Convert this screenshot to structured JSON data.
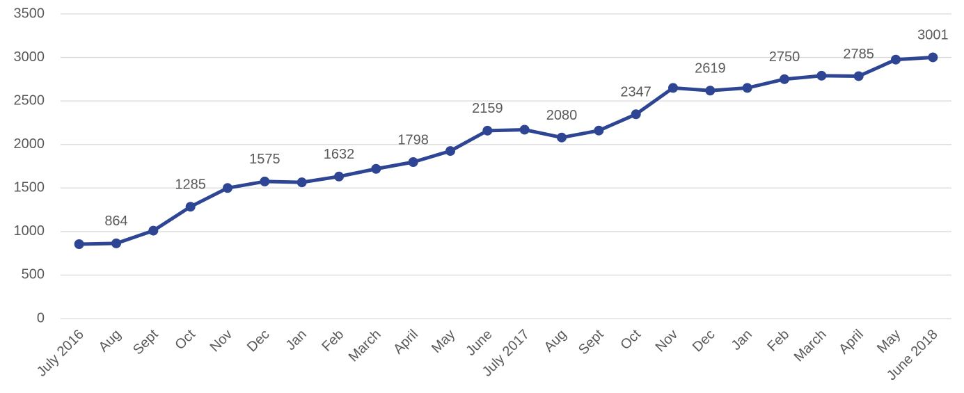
{
  "chart_data": {
    "type": "line",
    "categories": [
      "July 2016",
      "Aug",
      "Sept",
      "Oct",
      "Nov",
      "Dec",
      "Jan",
      "Feb",
      "March",
      "April",
      "May",
      "June",
      "July 2017",
      "Aug",
      "Sept",
      "Oct",
      "Nov",
      "Dec",
      "Jan",
      "Feb",
      "March",
      "April",
      "May",
      "June 2018"
    ],
    "series": [
      {
        "color": "#2e4593",
        "values": [
          855,
          864,
          1010,
          1285,
          1500,
          1575,
          1565,
          1632,
          1720,
          1798,
          1925,
          2159,
          2170,
          2080,
          2160,
          2347,
          2650,
          2619,
          2650,
          2750,
          2790,
          2785,
          2975,
          3001
        ],
        "value_labels": [
          null,
          "864",
          null,
          "1285",
          null,
          "1575",
          null,
          "1632",
          null,
          "1798",
          null,
          "2159",
          null,
          "2080",
          null,
          "2347",
          null,
          "2619",
          null,
          "2750",
          null,
          "2785",
          null,
          "3001"
        ]
      }
    ],
    "ylim": [
      0,
      3500
    ],
    "yticks": [
      0,
      500,
      1000,
      1500,
      2000,
      2500,
      3000,
      3500
    ],
    "grid": true
  }
}
